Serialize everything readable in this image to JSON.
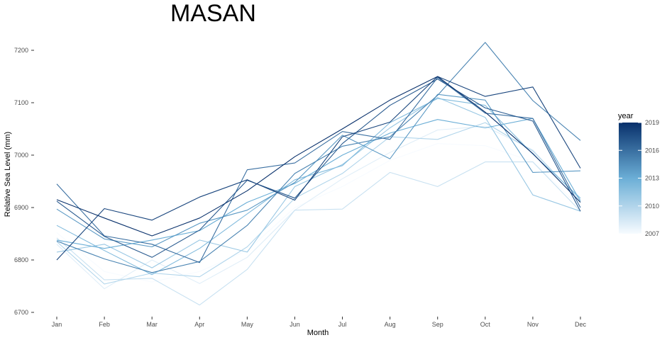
{
  "chart_data": {
    "type": "line",
    "title": "MASAN",
    "xlabel": "Month",
    "ylabel": "Relative Sea Level (mm)",
    "categories": [
      "Jan",
      "Feb",
      "Mar",
      "Apr",
      "May",
      "Jun",
      "Jul",
      "Aug",
      "Sep",
      "Oct",
      "Nov",
      "Dec"
    ],
    "yticks": [
      6700,
      6800,
      6900,
      7000,
      7100,
      7200
    ],
    "ylim": [
      6690,
      7225
    ],
    "grid": false,
    "legend": {
      "title": "year",
      "placement": "right",
      "ticks": [
        2019,
        2016,
        2013,
        2010,
        2007
      ],
      "range": [
        2007,
        2019
      ],
      "color_low": "#f7fbff",
      "color_high": "#08306b"
    },
    "series": [
      {
        "year": 2007,
        "values": [
          6852,
          6778,
          6758,
          6778,
          6818,
          6900,
          6940,
          6990,
          7022,
          7018,
          6988,
          6900
        ]
      },
      {
        "year": 2008,
        "values": [
          6830,
          6745,
          6800,
          6755,
          6805,
          6895,
          6955,
          7005,
          7048,
          7055,
          7010,
          6912
        ]
      },
      {
        "year": 2009,
        "values": [
          6842,
          6762,
          6765,
          6714,
          6782,
          6895,
          6897,
          6967,
          6940,
          6987,
          6987,
          6893
        ]
      },
      {
        "year": 2010,
        "values": [
          6835,
          6754,
          6775,
          6768,
          6825,
          6918,
          6965,
          7035,
          7030,
          7062,
          7008,
          6915
        ]
      },
      {
        "year": 2011,
        "values": [
          6815,
          6830,
          6785,
          6838,
          6815,
          6940,
          6982,
          7052,
          7110,
          7072,
          6924,
          6893
        ]
      },
      {
        "year": 2012,
        "values": [
          6866,
          6818,
          6772,
          6822,
          6888,
          6953,
          6980,
          7062,
          7108,
          7095,
          7002,
          6918
        ]
      },
      {
        "year": 2013,
        "values": [
          6838,
          6822,
          6838,
          6856,
          6910,
          6946,
          7000,
          7042,
          7068,
          7052,
          7070,
          6912
        ]
      },
      {
        "year": 2014,
        "values": [
          6897,
          6840,
          6825,
          6870,
          6895,
          6948,
          7038,
          6993,
          7116,
          7105,
          6967,
          6970
        ]
      },
      {
        "year": 2015,
        "values": [
          6836,
          6802,
          6776,
          6797,
          6866,
          6965,
          7017,
          7035,
          7114,
          7215,
          7104,
          7028
        ]
      },
      {
        "year": 2016,
        "values": [
          6945,
          6846,
          6830,
          6795,
          6972,
          6985,
          7045,
          7030,
          7148,
          7080,
          7070,
          6900
        ]
      },
      {
        "year": 2017,
        "values": [
          6912,
          6845,
          6805,
          6857,
          6952,
          6918,
          7022,
          7095,
          7145,
          7090,
          7065,
          6893
        ]
      },
      {
        "year": 2018,
        "values": [
          6800,
          6898,
          6876,
          6920,
          6953,
          6914,
          7035,
          7063,
          7150,
          7112,
          7130,
          6975
        ]
      },
      {
        "year": 2019,
        "values": [
          6915,
          6880,
          6846,
          6880,
          6932,
          6997,
          7050,
          7105,
          7150,
          7082,
          7003,
          6910
        ]
      }
    ]
  }
}
